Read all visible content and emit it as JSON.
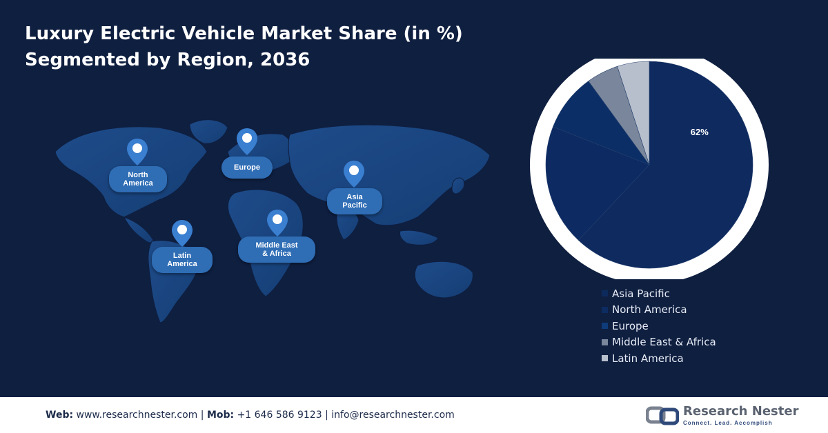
{
  "title": {
    "line1": "Luxury Electric Vehicle Market Share (in %)",
    "line2": "Segmented by Region, 2036"
  },
  "map_labels": {
    "north_america": [
      "North",
      "America"
    ],
    "europe": [
      "Europe"
    ],
    "asia_pacific": [
      "Asia",
      "Pacific"
    ],
    "latin_america": [
      "Latin",
      "America"
    ],
    "middle_east_africa": [
      "Middle East",
      "& Africa"
    ]
  },
  "chart_data": {
    "type": "pie",
    "categories": [
      "Asia Pacific",
      "North America",
      "Europe",
      "Middle East & Africa",
      "Latin America"
    ],
    "values": [
      62,
      19,
      9,
      5,
      5
    ],
    "data_labels": [
      "62%",
      "",
      "",
      "",
      ""
    ],
    "colors": [
      "#0e2a5f",
      "#0d2a62",
      "#0c2e66",
      "#7a869b",
      "#b8bfcc"
    ],
    "legend_position": "bottom-right"
  },
  "footer": {
    "web_label": "Web:",
    "web_value": "www.researchnester.com",
    "sep1": "|",
    "mob_label": "Mob:",
    "mob_value": "+1 646 586 9123",
    "sep2": "|",
    "email": "info@researchnester.com"
  },
  "logo": {
    "name": "Research Nester",
    "tagline": "Connect. Lead. Accomplish"
  }
}
